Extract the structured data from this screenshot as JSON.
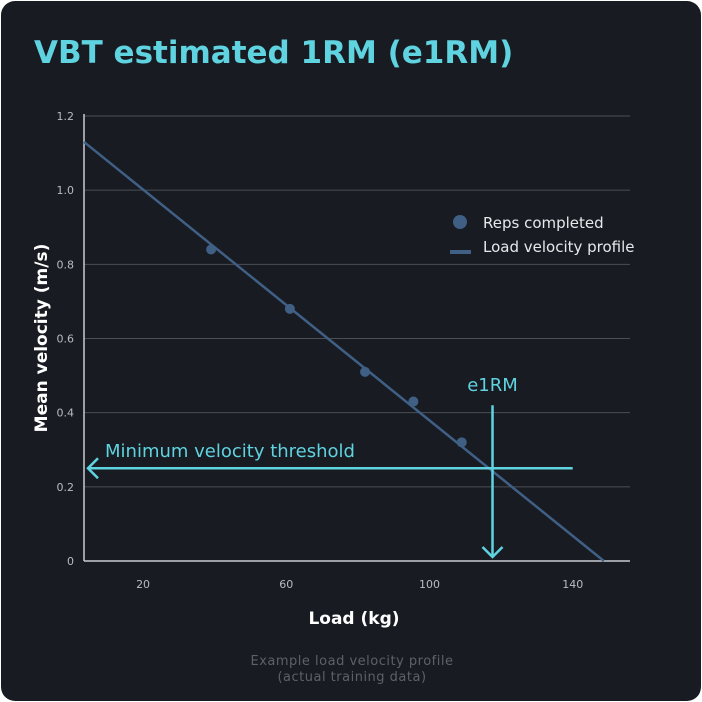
{
  "title": "VBT estimated 1RM (e1RM)",
  "caption": [
    "Example load velocity profile",
    "(actual training data)"
  ],
  "colors": {
    "accent": "#5fd3e0",
    "series": "#3f5f85",
    "background": "#181c22",
    "grid": "#4a4e55"
  },
  "chart_data": {
    "type": "scatter",
    "title": "VBT estimated 1RM (e1RM)",
    "xlabel": "Load (kg)",
    "ylabel": "Mean velocity (m/s)",
    "xlim": [
      3.5,
      156
    ],
    "ylim": [
      0,
      1.2
    ],
    "xticks": [
      20,
      60,
      100,
      140
    ],
    "yticks": [
      0,
      0.2,
      0.4,
      0.6,
      0.8,
      1.0,
      1.2
    ],
    "ytick_labels": [
      "0",
      "0.2",
      "0.4",
      "0.6",
      "0.8",
      "1.0",
      "1.2"
    ],
    "grid": "horizontal",
    "legend_position": "right",
    "series": [
      {
        "name": "Reps completed",
        "type": "scatter",
        "x": [
          39,
          61,
          82,
          95.5,
          109
        ],
        "y": [
          0.84,
          0.68,
          0.51,
          0.43,
          0.32
        ]
      },
      {
        "name": "Load velocity profile",
        "type": "line",
        "x": [
          3.5,
          148.7
        ],
        "y": [
          1.13,
          0
        ]
      }
    ],
    "annotations": [
      {
        "text": "Minimum velocity threshold",
        "type": "horizontal-arrow",
        "y": 0.25,
        "x_from": 140,
        "x_to": 3.5
      },
      {
        "text": "e1RM",
        "type": "vertical-arrow",
        "x": 117.6,
        "y_from": 0.42,
        "y_to": 0
      }
    ]
  }
}
